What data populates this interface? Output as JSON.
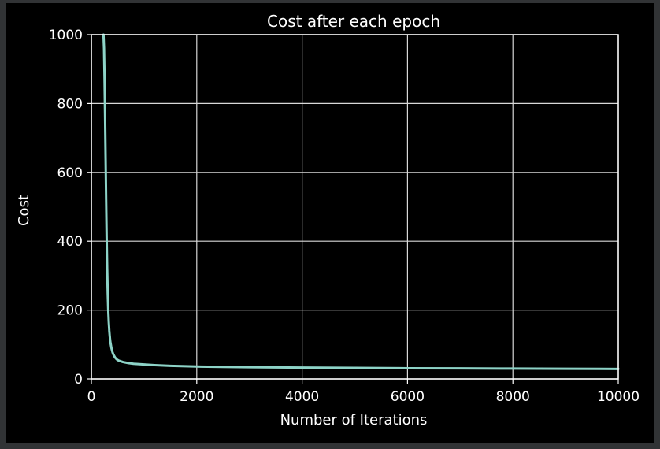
{
  "chart_data": {
    "type": "line",
    "title": "Cost after each epoch",
    "xlabel": "Number of Iterations",
    "ylabel": "Cost",
    "xlim": [
      0,
      10000
    ],
    "ylim": [
      0,
      1000
    ],
    "xticks": [
      0,
      2000,
      4000,
      6000,
      8000,
      10000
    ],
    "yticks": [
      0,
      200,
      400,
      600,
      800,
      1000
    ],
    "grid": true,
    "series": [
      {
        "x": [
          230,
          240,
          250,
          260,
          270,
          280,
          290,
          300,
          310,
          320,
          330,
          340,
          350,
          360,
          380,
          400,
          420,
          450,
          480,
          520,
          560,
          600,
          700,
          800,
          1000,
          1200,
          1500,
          2000,
          2500,
          3000,
          4000,
          5000,
          6000,
          7000,
          8000,
          9000,
          10000
        ],
        "y": [
          1000,
          960,
          870,
          760,
          640,
          520,
          410,
          320,
          250,
          200,
          165,
          140,
          122,
          108,
          90,
          78,
          70,
          62,
          57,
          53,
          51,
          49,
          46,
          44,
          42,
          40,
          38,
          36,
          35,
          34,
          33,
          32,
          31,
          30.5,
          30,
          29.5,
          29
        ]
      }
    ]
  },
  "colors": {
    "line": "#8dd3c7",
    "axes": "#ffffff",
    "grid": "#d8d8d8",
    "text": "#ffffff",
    "figure_bg": "#000000",
    "window_bg": "#313335"
  }
}
